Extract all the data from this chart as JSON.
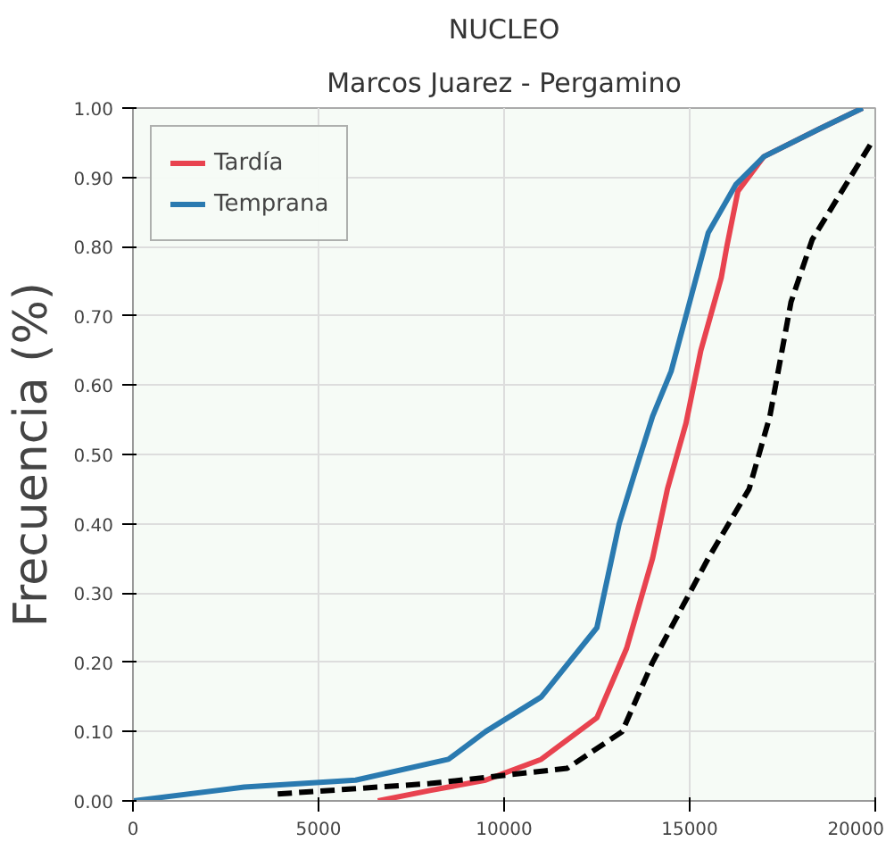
{
  "chart_data": {
    "type": "line",
    "title": "NUCLEO",
    "subtitle": "Marcos Juarez - Pergamino",
    "ylabel": "Frecuencia (%)",
    "xlim": [
      0,
      20000
    ],
    "xticks": [
      0,
      5000,
      10000,
      15000,
      20000
    ],
    "ylim": [
      0,
      1
    ],
    "yticks": [
      {
        "value": 0,
        "label": "0.00"
      },
      {
        "value": 0.1,
        "label": "0.10"
      },
      {
        "value": 0.2,
        "label": "0.20"
      },
      {
        "value": 0.3,
        "label": "0.30"
      },
      {
        "value": 0.4,
        "label": "0.40"
      },
      {
        "value": 0.5,
        "label": "0.50"
      },
      {
        "value": 0.6,
        "label": "0.60"
      },
      {
        "value": 0.7,
        "label": "0.70"
      },
      {
        "value": 0.8,
        "label": "0.80"
      },
      {
        "value": 0.9,
        "label": "0.90"
      },
      {
        "value": 1,
        "label": "1.00"
      }
    ],
    "grid": true,
    "legend": "top left",
    "marker": "none",
    "series": [
      {
        "name": "Tardía",
        "color": "#e8434f",
        "x": [
          6600,
          8000,
          9500,
          11000,
          12500,
          13300,
          14000,
          14400,
          14900,
          15300,
          15850,
          16000,
          16300,
          17000,
          18500,
          19660
        ],
        "values": [
          0,
          0.015,
          0.03,
          0.06,
          0.12,
          0.22,
          0.35,
          0.45,
          0.545,
          0.65,
          0.755,
          0.8,
          0.88,
          0.93,
          0.97,
          1.0
        ]
      },
      {
        "name": "Temprana",
        "color": "#2a7ab0",
        "x": [
          0,
          3000,
          6000,
          8500,
          9500,
          11000,
          12500,
          13100,
          13500,
          14000,
          14500,
          15000,
          15500,
          16250,
          17000,
          18500,
          19660
        ],
        "values": [
          0,
          0.02,
          0.03,
          0.06,
          0.1,
          0.15,
          0.25,
          0.4,
          0.47,
          0.555,
          0.62,
          0.72,
          0.82,
          0.89,
          0.93,
          0.97,
          1.0
        ]
      },
      {
        "color": "#000000",
        "line_style": "dashed",
        "x": [
          3900,
          8000,
          11700,
          13180,
          14000,
          15500,
          16600,
          17160,
          17730,
          18300,
          19900
        ],
        "values": [
          0.01,
          0.025,
          0.047,
          0.1,
          0.2,
          0.35,
          0.45,
          0.555,
          0.72,
          0.81,
          0.95
        ]
      }
    ]
  }
}
